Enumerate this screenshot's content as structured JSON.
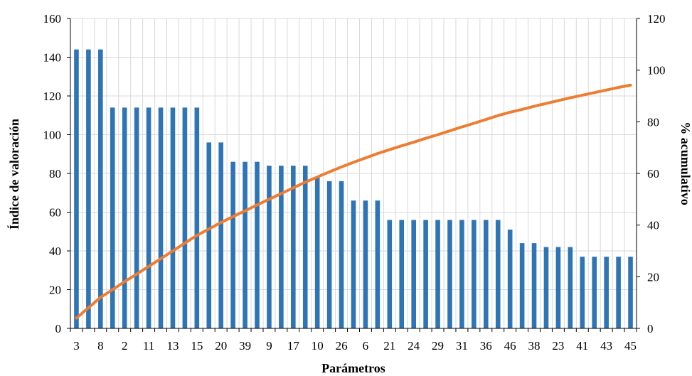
{
  "chart_data": {
    "type": "bar",
    "title": "",
    "xlabel": "Parámetros",
    "ylabel": "Índice de valoración",
    "y2label": "% acumulativo",
    "ylim": [
      0,
      160
    ],
    "y2lim": [
      0,
      120
    ],
    "yticks": [
      0,
      20,
      40,
      60,
      80,
      100,
      120,
      140,
      160
    ],
    "y2ticks": [
      0,
      20,
      40,
      60,
      80,
      100,
      120
    ],
    "grid": true,
    "legend": "none",
    "colors": {
      "bars": "#2E75B6",
      "line": "#ED7D31",
      "grid": "#D9D9D9",
      "axis": "#000000"
    },
    "categories": [
      "3",
      "",
      "8",
      "",
      "2",
      "",
      "11",
      "",
      "13",
      "",
      "15",
      "",
      "20",
      "",
      "39",
      "",
      "9",
      "",
      "17",
      "",
      "10",
      "",
      "26",
      "",
      "6",
      "",
      "21",
      "",
      "24",
      "",
      "29",
      "",
      "31",
      "",
      "36",
      "",
      "46",
      "",
      "38",
      "",
      "23",
      "",
      "41",
      "",
      "43",
      "",
      "45"
    ],
    "series": [
      {
        "kind": "bar",
        "axis": "left",
        "values": [
          144,
          144,
          144,
          114,
          114,
          114,
          114,
          114,
          114,
          114,
          114,
          96,
          96,
          86,
          86,
          86,
          84,
          84,
          84,
          84,
          78,
          76,
          76,
          66,
          66,
          66,
          56,
          56,
          56,
          56,
          56,
          56,
          56,
          56,
          56,
          56,
          51,
          44,
          44,
          42,
          42,
          42,
          37,
          37,
          37,
          37,
          37
        ]
      },
      {
        "kind": "line",
        "axis": "right",
        "values": [
          4,
          8,
          12,
          15,
          18.1,
          21,
          24,
          27,
          30,
          33,
          36,
          38.5,
          41,
          43.3,
          45.5,
          47.8,
          50,
          52.2,
          54.4,
          56.6,
          58.6,
          60.6,
          62.5,
          64.3,
          66,
          67.7,
          69.2,
          70.7,
          72.1,
          73.6,
          75,
          76.5,
          78,
          79.4,
          80.9,
          82.4,
          83.7,
          84.8,
          86,
          87.1,
          88.2,
          89.3,
          90.3,
          91.3,
          92.3,
          93.3,
          94.2
        ]
      }
    ]
  }
}
